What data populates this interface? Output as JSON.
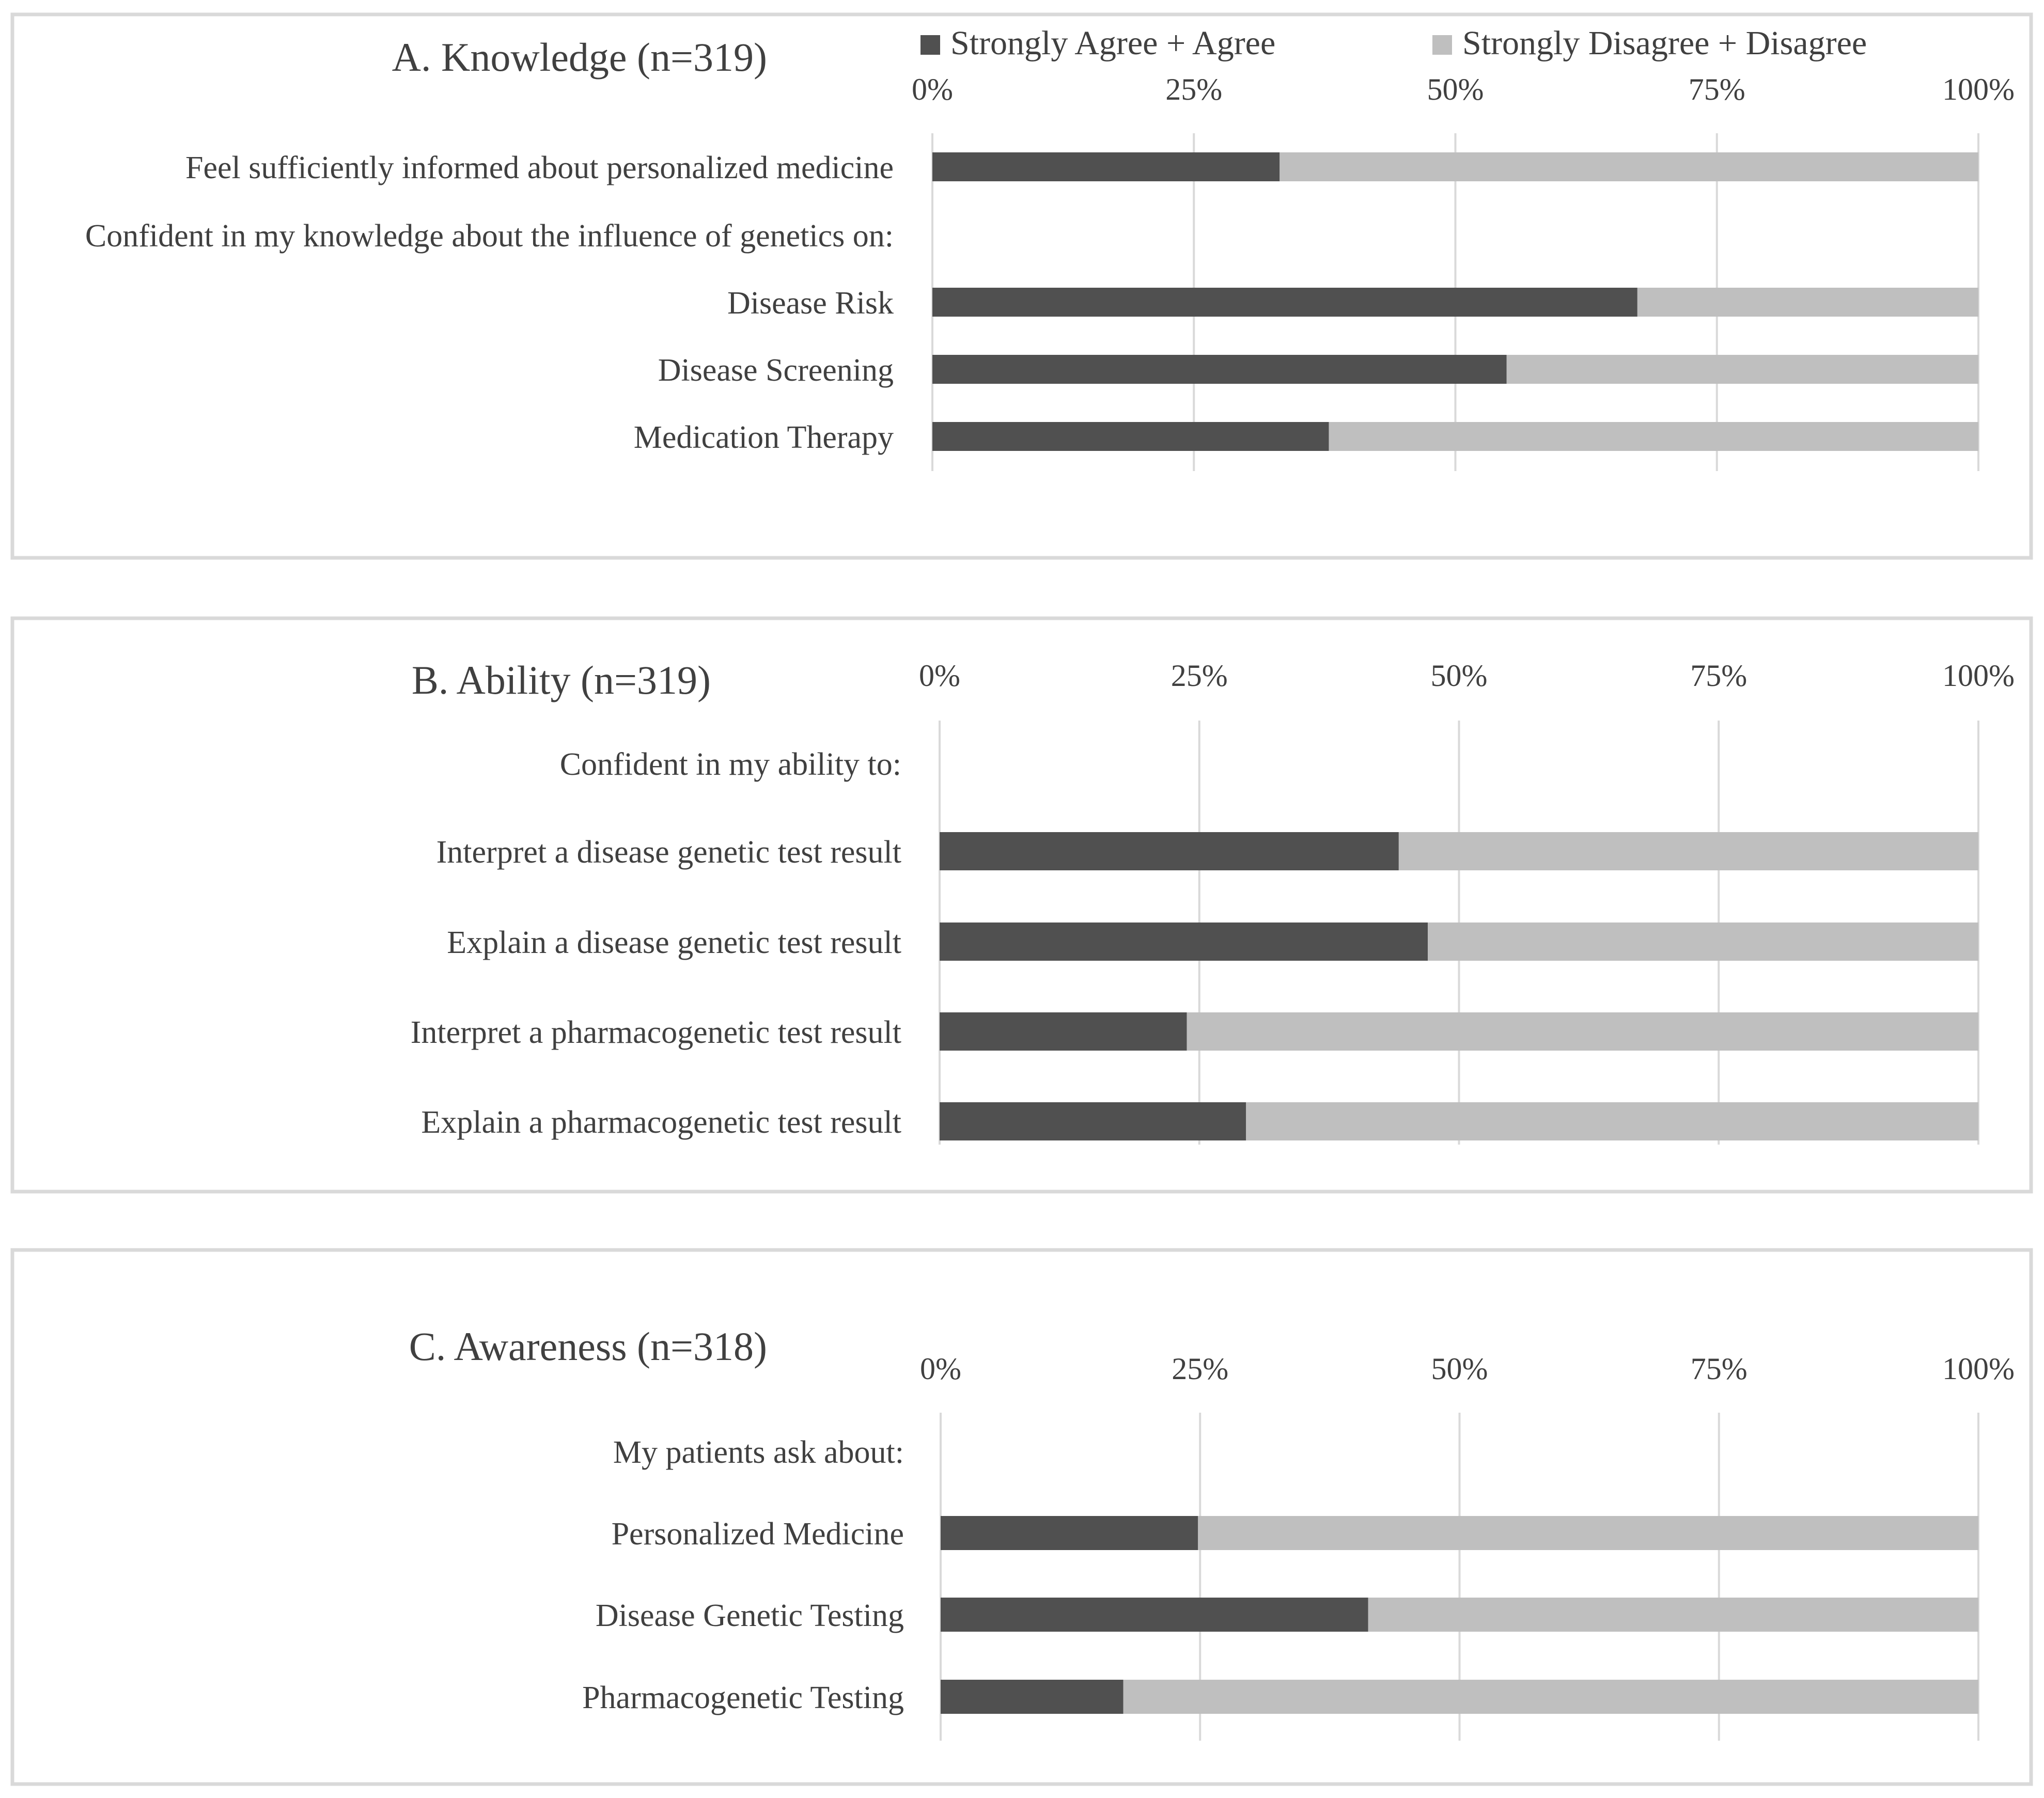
{
  "legend": {
    "agree_label": "Strongly Agree + Agree",
    "disagree_label": "Strongly Disagree + Disagree"
  },
  "colors": {
    "agree": "#505050",
    "disagree": "#bfbfbf",
    "grid": "#d9d9d9",
    "panel_border": "#d9d9d9",
    "text": "#404040"
  },
  "chart_data": [
    {
      "type": "bar",
      "orientation": "horizontal",
      "stacked": true,
      "title": "A. Knowledge (n=319)",
      "xlim": [
        0,
        100
      ],
      "ticks": [
        "0%",
        "25%",
        "50%",
        "75%",
        "100%"
      ],
      "rows": [
        {
          "label": "Feel sufficiently informed about personalized medicine",
          "agree": 33.2
        },
        {
          "label": "Confident in my knowledge about the influence of genetics on:",
          "header": true
        },
        {
          "label": "Disease Risk",
          "agree": 67.4
        },
        {
          "label": "Disease Screening",
          "agree": 54.9
        },
        {
          "label": "Medication Therapy",
          "agree": 37.9
        }
      ]
    },
    {
      "type": "bar",
      "orientation": "horizontal",
      "stacked": true,
      "title": "B. Ability (n=319)",
      "xlim": [
        0,
        100
      ],
      "ticks": [
        "0%",
        "25%",
        "50%",
        "75%",
        "100%"
      ],
      "rows": [
        {
          "label": "Confident in my ability to:",
          "header": true
        },
        {
          "label": "Interpret a disease genetic test result",
          "agree": 44.2
        },
        {
          "label": "Explain a disease genetic test result",
          "agree": 47.0
        },
        {
          "label": "Interpret a pharmacogenetic test result",
          "agree": 23.8
        },
        {
          "label": "Explain a pharmacogenetic test result",
          "agree": 29.5
        }
      ]
    },
    {
      "type": "bar",
      "orientation": "horizontal",
      "stacked": true,
      "title": "C. Awareness (n=318)",
      "xlim": [
        0,
        100
      ],
      "ticks": [
        "0%",
        "25%",
        "50%",
        "75%",
        "100%"
      ],
      "rows": [
        {
          "label": "My patients ask about:",
          "header": true
        },
        {
          "label": "Personalized Medicine",
          "agree": 24.8
        },
        {
          "label": "Disease Genetic Testing",
          "agree": 41.2
        },
        {
          "label": "Pharmacogenetic Testing",
          "agree": 17.6
        }
      ]
    }
  ]
}
